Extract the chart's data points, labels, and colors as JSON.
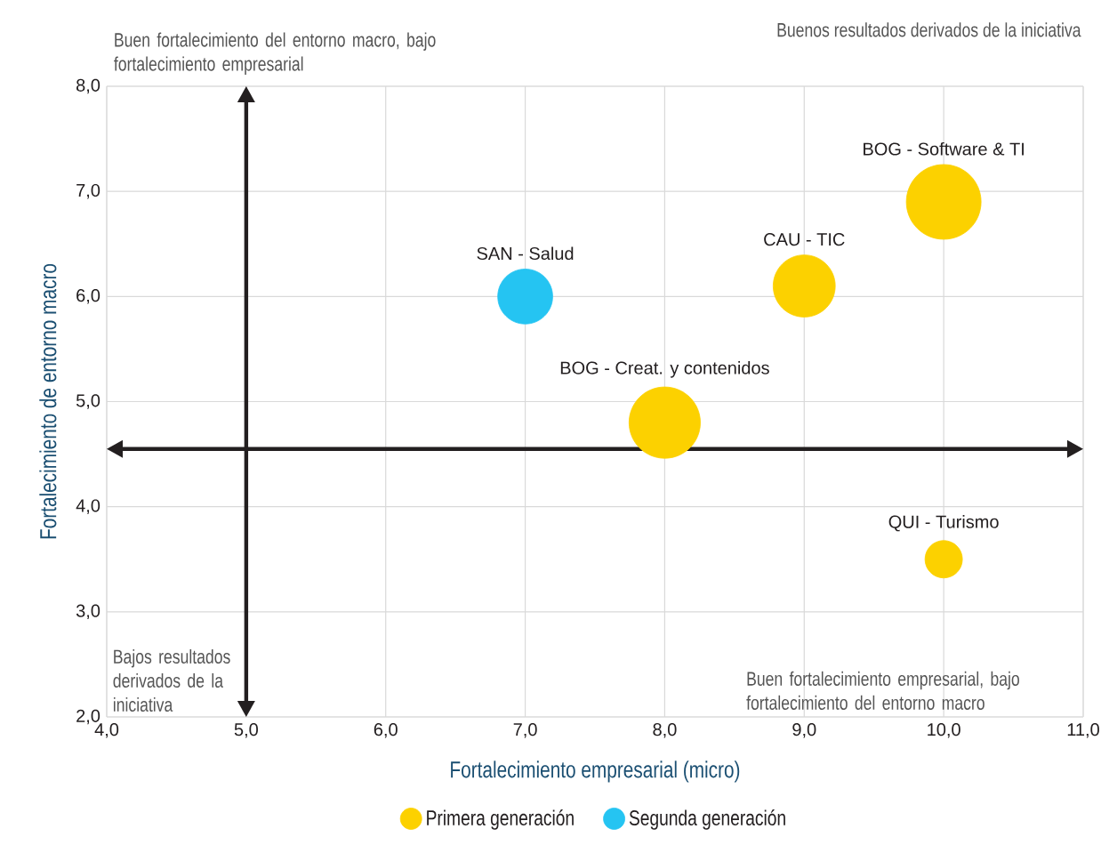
{
  "chart_data": {
    "type": "bubble",
    "xlabel": "Fortalecimiento empresarial (micro)",
    "ylabel": "Fortalecimiento de entorno macro",
    "series": [
      {
        "name": "Primera generación",
        "color": "#fcd100",
        "x": [
          8,
          9,
          10,
          10
        ],
        "values": [
          4.8,
          6.1,
          6.9,
          3.5
        ],
        "sizes": [
          0.91,
          0.69,
          1,
          0.25
        ]
      },
      {
        "name": "Segunda generación",
        "color": "#25c4f2",
        "x": [
          7
        ],
        "values": [
          6.0
        ],
        "sizes": [
          0.54
        ]
      }
    ],
    "xlim": [
      4,
      11
    ],
    "ylim": [
      2,
      8
    ],
    "xticks": [
      {
        "value": 4,
        "label": "4,0"
      },
      {
        "value": 5,
        "label": "5,0"
      },
      {
        "value": 6,
        "label": "6,0"
      },
      {
        "value": 7,
        "label": "7,0"
      },
      {
        "value": 8,
        "label": "8,0"
      },
      {
        "value": 9,
        "label": "9,0"
      },
      {
        "value": 10,
        "label": "10,0"
      },
      {
        "value": 11,
        "label": "11,0"
      }
    ],
    "yticks": [
      {
        "value": 2,
        "label": "2,0"
      },
      {
        "value": 3,
        "label": "3,0"
      },
      {
        "value": 4,
        "label": "4,0"
      },
      {
        "value": 5,
        "label": "5,0"
      },
      {
        "value": 6,
        "label": "6,0"
      },
      {
        "value": 7,
        "label": "7,0"
      },
      {
        "value": 8,
        "label": "8,0"
      }
    ],
    "grid": true,
    "legend": "bottom",
    "ref_lines": [
      {
        "axis": "y",
        "value": 4.55
      },
      {
        "axis": "x",
        "value": 5
      }
    ],
    "annotations": [
      "Buen fortalecimiento del entorno macro, bajo fortalecimiento empresarial",
      "Buenos resultados derivados de la iniciativa",
      "Bajos resultados derivados de la iniciativa",
      "Buen fortalecimiento empresarial, bajo fortalecimiento del entorno macro",
      {
        "text": "SAN - Salud",
        "x": 7,
        "y": 6.0
      },
      {
        "text": "CAU - TIC",
        "x": 9,
        "y": 6.1
      },
      {
        "text": "BOG - Software & TI",
        "x": 10,
        "y": 6.9
      },
      {
        "text": "BOG - Creat. y contenidos",
        "x": 8,
        "y": 4.8
      },
      {
        "text": "QUI - Turismo",
        "x": 10,
        "y": 3.5
      }
    ]
  }
}
